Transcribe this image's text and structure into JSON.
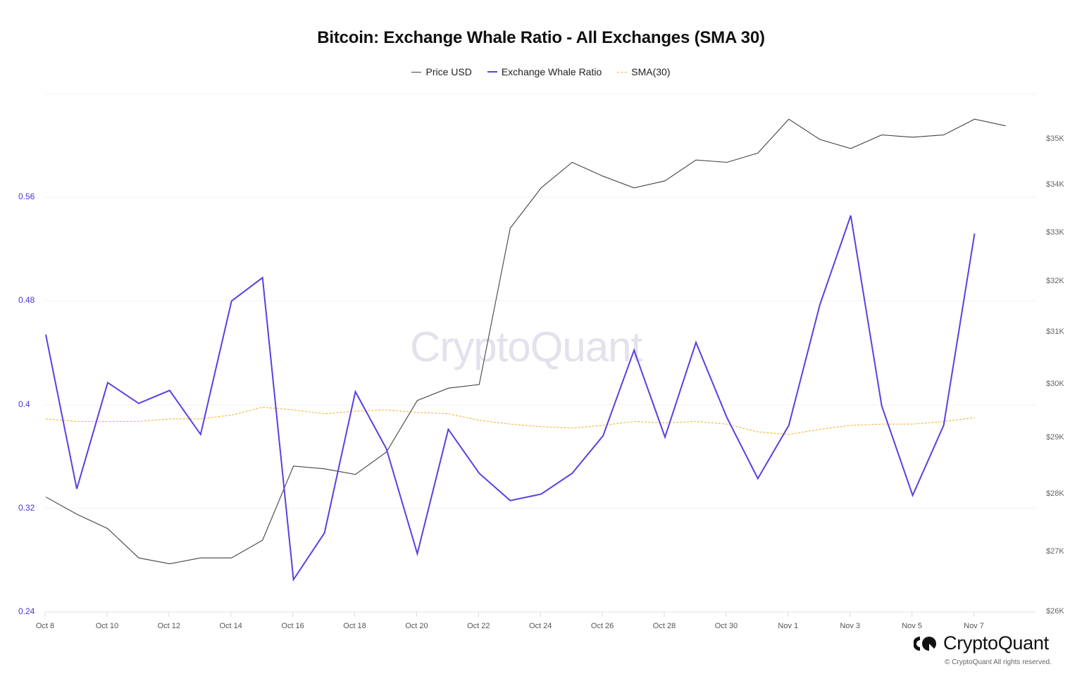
{
  "title": "Bitcoin: Exchange Whale Ratio - All Exchanges (SMA 30)",
  "legend": [
    {
      "label": "Price USD",
      "color": "#444444"
    },
    {
      "label": "Exchange Whale Ratio",
      "color": "#5b3fe0"
    },
    {
      "label": "SMA(30)",
      "color": "#f2b632"
    }
  ],
  "watermark": "CryptoQuant",
  "brand": {
    "name": "CryptoQuant",
    "copyright": "© CryptoQuant All rights reserved."
  },
  "axes": {
    "left_ticks": [
      "0.56",
      "0.48",
      "0.4",
      "0.32",
      "0.24"
    ],
    "right_ticks": [
      "$35K",
      "$34K",
      "$33K",
      "$32K",
      "$31K",
      "$30K",
      "$29K",
      "$28K",
      "$27K",
      "$26K"
    ],
    "x_ticks": [
      "Oct 8",
      "Oct 10",
      "Oct 12",
      "Oct 14",
      "Oct 16",
      "Oct 18",
      "Oct 20",
      "Oct 22",
      "Oct 24",
      "Oct 26",
      "Oct 28",
      "Oct 30",
      "Nov 1",
      "Nov 3",
      "Nov 5",
      "Nov 7"
    ]
  },
  "chart_data": {
    "type": "line",
    "title": "Bitcoin: Exchange Whale Ratio - All Exchanges (SMA 30)",
    "xlabel": "",
    "ylabel_left": "Exchange Whale Ratio",
    "ylabel_right": "Price USD",
    "ylim_left": [
      0.24,
      0.64
    ],
    "ylim_right_log": [
      26000,
      36500
    ],
    "grid": true,
    "legend_position": "top",
    "x": [
      "Oct 8",
      "Oct 9",
      "Oct 10",
      "Oct 11",
      "Oct 12",
      "Oct 13",
      "Oct 14",
      "Oct 15",
      "Oct 16",
      "Oct 17",
      "Oct 18",
      "Oct 19",
      "Oct 20",
      "Oct 21",
      "Oct 22",
      "Oct 23",
      "Oct 24",
      "Oct 25",
      "Oct 26",
      "Oct 27",
      "Oct 28",
      "Oct 29",
      "Oct 30",
      "Oct 31",
      "Nov 1",
      "Nov 2",
      "Nov 3",
      "Nov 4",
      "Nov 5",
      "Nov 6",
      "Nov 7",
      "Nov 8"
    ],
    "series": [
      {
        "name": "Price USD",
        "axis": "right",
        "color": "#444444",
        "values": [
          27950,
          27650,
          27400,
          26900,
          26800,
          26900,
          26900,
          27200,
          28500,
          28450,
          28350,
          28750,
          29700,
          29930,
          30000,
          33100,
          33950,
          34500,
          34200,
          33950,
          34100,
          34550,
          34500,
          34700,
          35450,
          35000,
          34800,
          35100,
          35050,
          35100,
          35450,
          35300
        ]
      },
      {
        "name": "Exchange Whale Ratio",
        "axis": "left",
        "color": "#5b3fe0",
        "values": [
          0.454,
          0.335,
          0.417,
          0.401,
          0.411,
          0.377,
          0.48,
          0.498,
          0.265,
          0.301,
          0.41,
          0.366,
          0.285,
          0.381,
          0.347,
          0.326,
          0.331,
          0.347,
          0.376,
          0.442,
          0.375,
          0.448,
          0.39,
          0.343,
          0.384,
          0.477,
          0.546,
          0.399,
          0.33,
          0.384,
          0.532,
          null
        ]
      },
      {
        "name": "SMA(30)",
        "axis": "left",
        "color": "#f2b632",
        "values": [
          0.389,
          0.387,
          0.387,
          0.387,
          0.389,
          0.389,
          0.392,
          0.398,
          0.396,
          0.393,
          0.395,
          0.396,
          0.394,
          0.393,
          0.388,
          0.385,
          0.383,
          0.382,
          0.384,
          0.387,
          0.386,
          0.387,
          0.385,
          0.379,
          0.377,
          0.381,
          0.384,
          0.385,
          0.385,
          0.387,
          0.39,
          null
        ]
      }
    ]
  }
}
